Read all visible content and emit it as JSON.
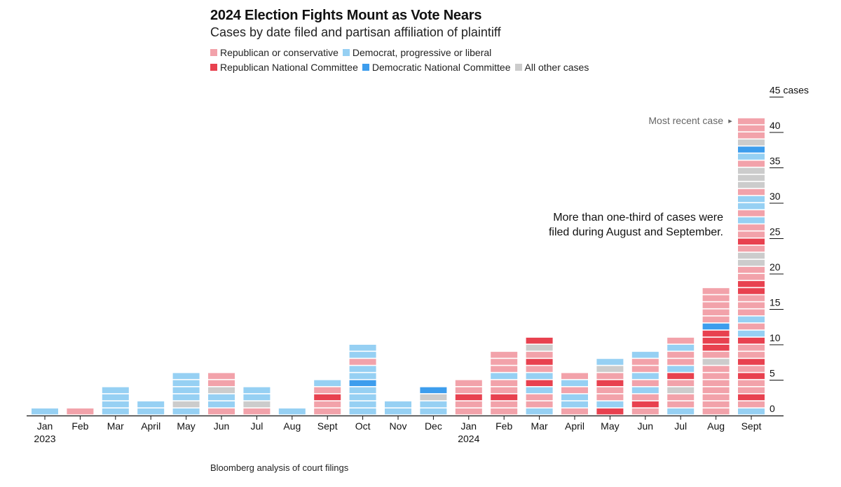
{
  "title": "2024 Election Fights Mount as Vote Nears",
  "subtitle": "Cases by date filed and partisan affiliation of plaintiff",
  "legend": [
    {
      "label": "Republican or conservative",
      "color": "#f2a2aa"
    },
    {
      "label": "Democrat, progressive or liberal",
      "color": "#96d0f3"
    },
    {
      "label": "Republican National Committee",
      "color": "#e8414f"
    },
    {
      "label": "Democratic National Committee",
      "color": "#3d9ded"
    },
    {
      "label": "All other cases",
      "color": "#cccccc"
    }
  ],
  "source": "Bloomberg analysis of court filings",
  "annotations": {
    "recent_case": "Most recent case",
    "recent_case_arrow": "▸",
    "note_line1": "More than one-third of cases were",
    "note_line2": "filed during August and September."
  },
  "chart_data": {
    "type": "bar",
    "stacked": true,
    "unit_blocks": true,
    "categories": [
      "Jan 2023",
      "Feb",
      "Mar",
      "April",
      "May",
      "Jun",
      "Jul",
      "Aug",
      "Sept",
      "Oct",
      "Nov",
      "Dec",
      "Jan 2024",
      "Feb",
      "Mar",
      "April",
      "May",
      "Jun",
      "Jul",
      "Aug",
      "Sept"
    ],
    "x_tick_labels": [
      {
        "line1": "Jan",
        "line2": "2023"
      },
      {
        "line1": "Feb"
      },
      {
        "line1": "Mar"
      },
      {
        "line1": "April"
      },
      {
        "line1": "May"
      },
      {
        "line1": "Jun"
      },
      {
        "line1": "Jul"
      },
      {
        "line1": "Aug"
      },
      {
        "line1": "Sept"
      },
      {
        "line1": "Oct"
      },
      {
        "line1": "Nov"
      },
      {
        "line1": "Dec"
      },
      {
        "line1": "Jan",
        "line2": "2024"
      },
      {
        "line1": "Feb"
      },
      {
        "line1": "Mar"
      },
      {
        "line1": "April"
      },
      {
        "line1": "May"
      },
      {
        "line1": "Jun"
      },
      {
        "line1": "Jul"
      },
      {
        "line1": "Aug"
      },
      {
        "line1": "Sept"
      }
    ],
    "series_keys": {
      "R": "Republican or conservative",
      "D": "Democrat, progressive or liberal",
      "RNC": "Republican National Committee",
      "DNC": "Democratic National Committee",
      "O": "All other cases"
    },
    "stacks_bottom_to_top": [
      [
        "D"
      ],
      [
        "R"
      ],
      [
        "D",
        "D",
        "D",
        "D"
      ],
      [
        "D",
        "D"
      ],
      [
        "D",
        "O",
        "D",
        "D",
        "D",
        "D"
      ],
      [
        "R",
        "D",
        "D",
        "O",
        "R",
        "R"
      ],
      [
        "R",
        "O",
        "D",
        "D"
      ],
      [
        "D"
      ],
      [
        "R",
        "R",
        "RNC",
        "R",
        "D"
      ],
      [
        "D",
        "D",
        "D",
        "D",
        "DNC",
        "D",
        "D",
        "R",
        "D",
        "D"
      ],
      [
        "D",
        "D"
      ],
      [
        "D",
        "D",
        "O",
        "DNC"
      ],
      [
        "R",
        "R",
        "RNC",
        "R",
        "R"
      ],
      [
        "R",
        "R",
        "RNC",
        "R",
        "R",
        "D",
        "R",
        "R",
        "R"
      ],
      [
        "D",
        "R",
        "R",
        "D",
        "RNC",
        "D",
        "R",
        "RNC",
        "R",
        "O",
        "RNC"
      ],
      [
        "R",
        "D",
        "D",
        "R",
        "D",
        "R"
      ],
      [
        "RNC",
        "D",
        "R",
        "R",
        "RNC",
        "R",
        "O",
        "D"
      ],
      [
        "R",
        "RNC",
        "R",
        "D",
        "R",
        "D",
        "R",
        "R",
        "D"
      ],
      [
        "D",
        "R",
        "R",
        "O",
        "R",
        "RNC",
        "D",
        "R",
        "R",
        "D",
        "R"
      ],
      [
        "R",
        "R",
        "R",
        "R",
        "R",
        "R",
        "R",
        "O",
        "R",
        "RNC",
        "RNC",
        "RNC",
        "DNC",
        "R",
        "R",
        "R",
        "R",
        "R"
      ],
      [
        "D",
        "R",
        "RNC",
        "R",
        "R",
        "RNC",
        "R",
        "RNC",
        "R",
        "R",
        "RNC",
        "D",
        "R",
        "D",
        "R",
        "R",
        "R",
        "RNC",
        "RNC",
        "R",
        "R",
        "O",
        "O",
        "R",
        "RNC",
        "R",
        "R",
        "D",
        "R",
        "D",
        "D",
        "R",
        "O",
        "O",
        "O",
        "R",
        "D",
        "DNC",
        "O",
        "R",
        "R",
        "R"
      ]
    ],
    "values": [
      1,
      1,
      4,
      2,
      6,
      6,
      4,
      1,
      5,
      10,
      2,
      4,
      5,
      9,
      11,
      6,
      8,
      9,
      11,
      18,
      42
    ],
    "y_ticks": [
      {
        "value": 0,
        "label": "0"
      },
      {
        "value": 5,
        "label": "5"
      },
      {
        "value": 10,
        "label": "10"
      },
      {
        "value": 15,
        "label": "15"
      },
      {
        "value": 20,
        "label": "20"
      },
      {
        "value": 25,
        "label": "25"
      },
      {
        "value": 30,
        "label": "30"
      },
      {
        "value": 35,
        "label": "35"
      },
      {
        "value": 40,
        "label": "40"
      },
      {
        "value": 45,
        "label": "45 cases"
      }
    ],
    "ylim": [
      0,
      45
    ],
    "ylabel": "cases",
    "grid": false
  }
}
